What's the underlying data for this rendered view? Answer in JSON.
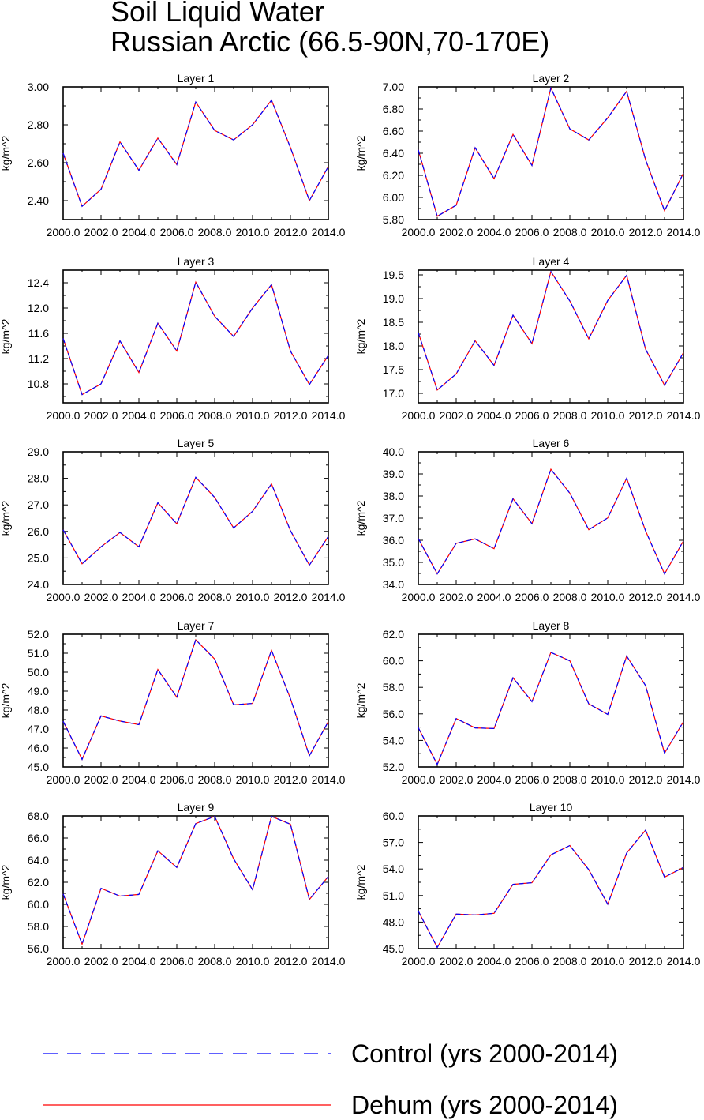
{
  "title_line1": "Soil Liquid Water",
  "title_line2": "Russian Arctic (66.5-90N,70-170E)",
  "legend": [
    {
      "label": "Control (yrs 2000-2014)",
      "color": "#0000ff",
      "style": "dashed"
    },
    {
      "label": "Dehum (yrs 2000-2014)",
      "color": "#ff0000",
      "style": "solid"
    }
  ],
  "chart_data": [
    {
      "type": "line",
      "title": "Layer 1",
      "ylabel": "kg/m^2",
      "x": [
        2000,
        2001,
        2002,
        2003,
        2004,
        2005,
        2006,
        2007,
        2008,
        2009,
        2010,
        2011,
        2012,
        2013,
        2014
      ],
      "xticks": [
        "2000.0",
        "2002.0",
        "2004.0",
        "2006.0",
        "2008.0",
        "2010.0",
        "2012.0",
        "2014.0"
      ],
      "ylim": [
        2.3,
        3.0
      ],
      "yticks": [
        "2.40",
        "2.60",
        "2.80",
        "3.00"
      ],
      "series": [
        {
          "name": "Control (yrs 2000-2014)",
          "values": [
            2.65,
            2.37,
            2.46,
            2.71,
            2.56,
            2.73,
            2.59,
            2.92,
            2.77,
            2.72,
            2.8,
            2.93,
            2.68,
            2.4,
            2.58
          ]
        },
        {
          "name": "Dehum (yrs 2000-2014)",
          "values": [
            2.65,
            2.37,
            2.46,
            2.71,
            2.56,
            2.73,
            2.59,
            2.92,
            2.77,
            2.72,
            2.8,
            2.93,
            2.68,
            2.4,
            2.58
          ]
        }
      ]
    },
    {
      "type": "line",
      "title": "Layer 2",
      "ylabel": "kg/m^2",
      "x": [
        2000,
        2001,
        2002,
        2003,
        2004,
        2005,
        2006,
        2007,
        2008,
        2009,
        2010,
        2011,
        2012,
        2013,
        2014
      ],
      "xticks": [
        "2000.0",
        "2002.0",
        "2004.0",
        "2006.0",
        "2008.0",
        "2010.0",
        "2012.0",
        "2014.0"
      ],
      "ylim": [
        5.8,
        7.0
      ],
      "yticks": [
        "5.80",
        "6.00",
        "6.20",
        "6.40",
        "6.60",
        "6.80",
        "7.00"
      ],
      "series": [
        {
          "name": "Control (yrs 2000-2014)",
          "values": [
            6.43,
            5.83,
            5.93,
            6.45,
            6.17,
            6.57,
            6.29,
            6.99,
            6.62,
            6.52,
            6.72,
            6.96,
            6.34,
            5.88,
            6.22
          ]
        },
        {
          "name": "Dehum (yrs 2000-2014)",
          "values": [
            6.43,
            5.83,
            5.93,
            6.45,
            6.17,
            6.57,
            6.29,
            6.99,
            6.62,
            6.52,
            6.72,
            6.96,
            6.34,
            5.88,
            6.22
          ]
        }
      ]
    },
    {
      "type": "line",
      "title": "Layer 3",
      "ylabel": "kg/m^2",
      "x": [
        2000,
        2001,
        2002,
        2003,
        2004,
        2005,
        2006,
        2007,
        2008,
        2009,
        2010,
        2011,
        2012,
        2013,
        2014
      ],
      "xticks": [
        "2000.0",
        "2002.0",
        "2004.0",
        "2006.0",
        "2008.0",
        "2010.0",
        "2012.0",
        "2014.0"
      ],
      "ylim": [
        10.5,
        12.6
      ],
      "yticks": [
        "10.8",
        "11.2",
        "11.6",
        "12.0",
        "12.4"
      ],
      "series": [
        {
          "name": "Control (yrs 2000-2014)",
          "values": [
            11.52,
            10.63,
            10.8,
            11.48,
            10.98,
            11.76,
            11.32,
            12.41,
            11.87,
            11.55,
            12.0,
            12.37,
            11.32,
            10.79,
            11.25
          ]
        },
        {
          "name": "Dehum (yrs 2000-2014)",
          "values": [
            11.52,
            10.63,
            10.8,
            11.48,
            10.98,
            11.76,
            11.32,
            12.41,
            11.87,
            11.55,
            12.0,
            12.37,
            11.32,
            10.79,
            11.25
          ]
        }
      ]
    },
    {
      "type": "line",
      "title": "Layer 4",
      "ylabel": "kg/m^2",
      "x": [
        2000,
        2001,
        2002,
        2003,
        2004,
        2005,
        2006,
        2007,
        2008,
        2009,
        2010,
        2011,
        2012,
        2013,
        2014
      ],
      "xticks": [
        "2000.0",
        "2002.0",
        "2004.0",
        "2006.0",
        "2008.0",
        "2010.0",
        "2012.0",
        "2014.0"
      ],
      "ylim": [
        16.8,
        19.6
      ],
      "yticks": [
        "17.0",
        "17.5",
        "18.0",
        "18.5",
        "19.0",
        "19.5"
      ],
      "series": [
        {
          "name": "Control (yrs 2000-2014)",
          "values": [
            18.28,
            17.07,
            17.41,
            18.11,
            17.59,
            18.65,
            18.05,
            19.57,
            18.95,
            18.15,
            18.96,
            19.49,
            17.93,
            17.17,
            17.86
          ]
        },
        {
          "name": "Dehum (yrs 2000-2014)",
          "values": [
            18.28,
            17.07,
            17.41,
            18.11,
            17.59,
            18.65,
            18.05,
            19.57,
            18.95,
            18.15,
            18.96,
            19.49,
            17.93,
            17.17,
            17.86
          ]
        }
      ]
    },
    {
      "type": "line",
      "title": "Layer 5",
      "ylabel": "kg/m^2",
      "x": [
        2000,
        2001,
        2002,
        2003,
        2004,
        2005,
        2006,
        2007,
        2008,
        2009,
        2010,
        2011,
        2012,
        2013,
        2014
      ],
      "xticks": [
        "2000.0",
        "2002.0",
        "2004.0",
        "2006.0",
        "2008.0",
        "2010.0",
        "2012.0",
        "2014.0"
      ],
      "ylim": [
        24.0,
        29.0
      ],
      "yticks": [
        "24.0",
        "25.0",
        "26.0",
        "27.0",
        "28.0",
        "29.0"
      ],
      "series": [
        {
          "name": "Control (yrs 2000-2014)",
          "values": [
            26.06,
            24.78,
            25.42,
            25.96,
            25.42,
            27.08,
            26.29,
            28.04,
            27.28,
            26.13,
            26.76,
            27.79,
            26.03,
            24.73,
            25.81
          ]
        },
        {
          "name": "Dehum (yrs 2000-2014)",
          "values": [
            26.06,
            24.78,
            25.42,
            25.96,
            25.42,
            27.08,
            26.29,
            28.04,
            27.28,
            26.13,
            26.76,
            27.79,
            26.03,
            24.73,
            25.81
          ]
        }
      ]
    },
    {
      "type": "line",
      "title": "Layer 6",
      "ylabel": "kg/m^2",
      "x": [
        2000,
        2001,
        2002,
        2003,
        2004,
        2005,
        2006,
        2007,
        2008,
        2009,
        2010,
        2011,
        2012,
        2013,
        2014
      ],
      "xticks": [
        "2000.0",
        "2002.0",
        "2004.0",
        "2006.0",
        "2008.0",
        "2010.0",
        "2012.0",
        "2014.0"
      ],
      "ylim": [
        34.0,
        40.0
      ],
      "yticks": [
        "34.0",
        "35.0",
        "36.0",
        "37.0",
        "38.0",
        "39.0",
        "40.0"
      ],
      "series": [
        {
          "name": "Control (yrs 2000-2014)",
          "values": [
            36.08,
            34.48,
            35.86,
            36.06,
            35.62,
            37.88,
            36.75,
            39.21,
            38.13,
            36.48,
            37.01,
            38.8,
            36.42,
            34.48,
            35.97
          ]
        },
        {
          "name": "Dehum (yrs 2000-2014)",
          "values": [
            36.08,
            34.48,
            35.86,
            36.06,
            35.62,
            37.88,
            36.75,
            39.21,
            38.13,
            36.48,
            37.01,
            38.8,
            36.42,
            34.48,
            35.97
          ]
        }
      ]
    },
    {
      "type": "line",
      "title": "Layer 7",
      "ylabel": "kg/m^2",
      "x": [
        2000,
        2001,
        2002,
        2003,
        2004,
        2005,
        2006,
        2007,
        2008,
        2009,
        2010,
        2011,
        2012,
        2013,
        2014
      ],
      "xticks": [
        "2000.0",
        "2002.0",
        "2004.0",
        "2006.0",
        "2008.0",
        "2010.0",
        "2012.0",
        "2014.0"
      ],
      "ylim": [
        45.0,
        52.0
      ],
      "yticks": [
        "45.0",
        "46.0",
        "47.0",
        "48.0",
        "49.0",
        "50.0",
        "51.0",
        "52.0"
      ],
      "series": [
        {
          "name": "Control (yrs 2000-2014)",
          "values": [
            47.41,
            45.4,
            47.69,
            47.42,
            47.23,
            50.14,
            48.68,
            51.71,
            50.69,
            48.28,
            48.35,
            51.15,
            48.61,
            45.59,
            47.39
          ]
        },
        {
          "name": "Dehum (yrs 2000-2014)",
          "values": [
            47.41,
            45.4,
            47.69,
            47.42,
            47.23,
            50.14,
            48.68,
            51.71,
            50.69,
            48.28,
            48.35,
            51.15,
            48.61,
            45.59,
            47.39
          ]
        }
      ]
    },
    {
      "type": "line",
      "title": "Layer 8",
      "ylabel": "kg/m^2",
      "x": [
        2000,
        2001,
        2002,
        2003,
        2004,
        2005,
        2006,
        2007,
        2008,
        2009,
        2010,
        2011,
        2012,
        2013,
        2014
      ],
      "xticks": [
        "2000.0",
        "2002.0",
        "2004.0",
        "2006.0",
        "2008.0",
        "2010.0",
        "2012.0",
        "2014.0"
      ],
      "ylim": [
        52.0,
        62.0
      ],
      "yticks": [
        "52.0",
        "54.0",
        "56.0",
        "58.0",
        "60.0",
        "62.0"
      ],
      "series": [
        {
          "name": "Control (yrs 2000-2014)",
          "values": [
            54.96,
            52.19,
            55.65,
            54.94,
            54.89,
            58.72,
            56.92,
            60.63,
            60.0,
            56.75,
            55.96,
            60.36,
            58.13,
            53.04,
            55.41
          ]
        },
        {
          "name": "Dehum (yrs 2000-2014)",
          "values": [
            54.96,
            52.19,
            55.65,
            54.94,
            54.89,
            58.72,
            56.92,
            60.63,
            60.0,
            56.75,
            55.96,
            60.36,
            58.13,
            53.04,
            55.41
          ]
        }
      ]
    },
    {
      "type": "line",
      "title": "Layer 9",
      "ylabel": "kg/m^2",
      "x": [
        2000,
        2001,
        2002,
        2003,
        2004,
        2005,
        2006,
        2007,
        2008,
        2009,
        2010,
        2011,
        2012,
        2013,
        2014
      ],
      "xticks": [
        "2000.0",
        "2002.0",
        "2004.0",
        "2006.0",
        "2008.0",
        "2010.0",
        "2012.0",
        "2014.0"
      ],
      "ylim": [
        56.0,
        68.0
      ],
      "yticks": [
        "56.0",
        "58.0",
        "60.0",
        "62.0",
        "64.0",
        "66.0",
        "68.0"
      ],
      "series": [
        {
          "name": "Control (yrs 2000-2014)",
          "values": [
            60.95,
            56.4,
            61.45,
            60.75,
            60.9,
            64.85,
            63.34,
            67.31,
            67.96,
            64.12,
            61.32,
            67.96,
            67.25,
            60.44,
            62.53
          ]
        },
        {
          "name": "Dehum (yrs 2000-2014)",
          "values": [
            60.95,
            56.4,
            61.45,
            60.75,
            60.9,
            64.85,
            63.34,
            67.31,
            67.96,
            64.12,
            61.32,
            67.96,
            67.25,
            60.44,
            62.53
          ]
        }
      ]
    },
    {
      "type": "line",
      "title": "Layer 10",
      "ylabel": "kg/m^2",
      "x": [
        2000,
        2001,
        2002,
        2003,
        2004,
        2005,
        2006,
        2007,
        2008,
        2009,
        2010,
        2011,
        2012,
        2013,
        2014
      ],
      "xticks": [
        "2000.0",
        "2002.0",
        "2004.0",
        "2006.0",
        "2008.0",
        "2010.0",
        "2012.0",
        "2014.0"
      ],
      "ylim": [
        45.0,
        60.0
      ],
      "yticks": [
        "45.0",
        "48.0",
        "51.0",
        "54.0",
        "57.0",
        "60.0"
      ],
      "series": [
        {
          "name": "Control (yrs 2000-2014)",
          "values": [
            49.24,
            45.13,
            48.91,
            48.8,
            48.99,
            52.27,
            52.45,
            55.6,
            56.65,
            53.92,
            50.02,
            55.81,
            58.39,
            53.08,
            54.18
          ]
        },
        {
          "name": "Dehum (yrs 2000-2014)",
          "values": [
            49.24,
            45.13,
            48.91,
            48.8,
            48.99,
            52.27,
            52.45,
            55.6,
            56.65,
            53.92,
            50.02,
            55.81,
            58.39,
            53.08,
            54.18
          ]
        }
      ]
    }
  ]
}
